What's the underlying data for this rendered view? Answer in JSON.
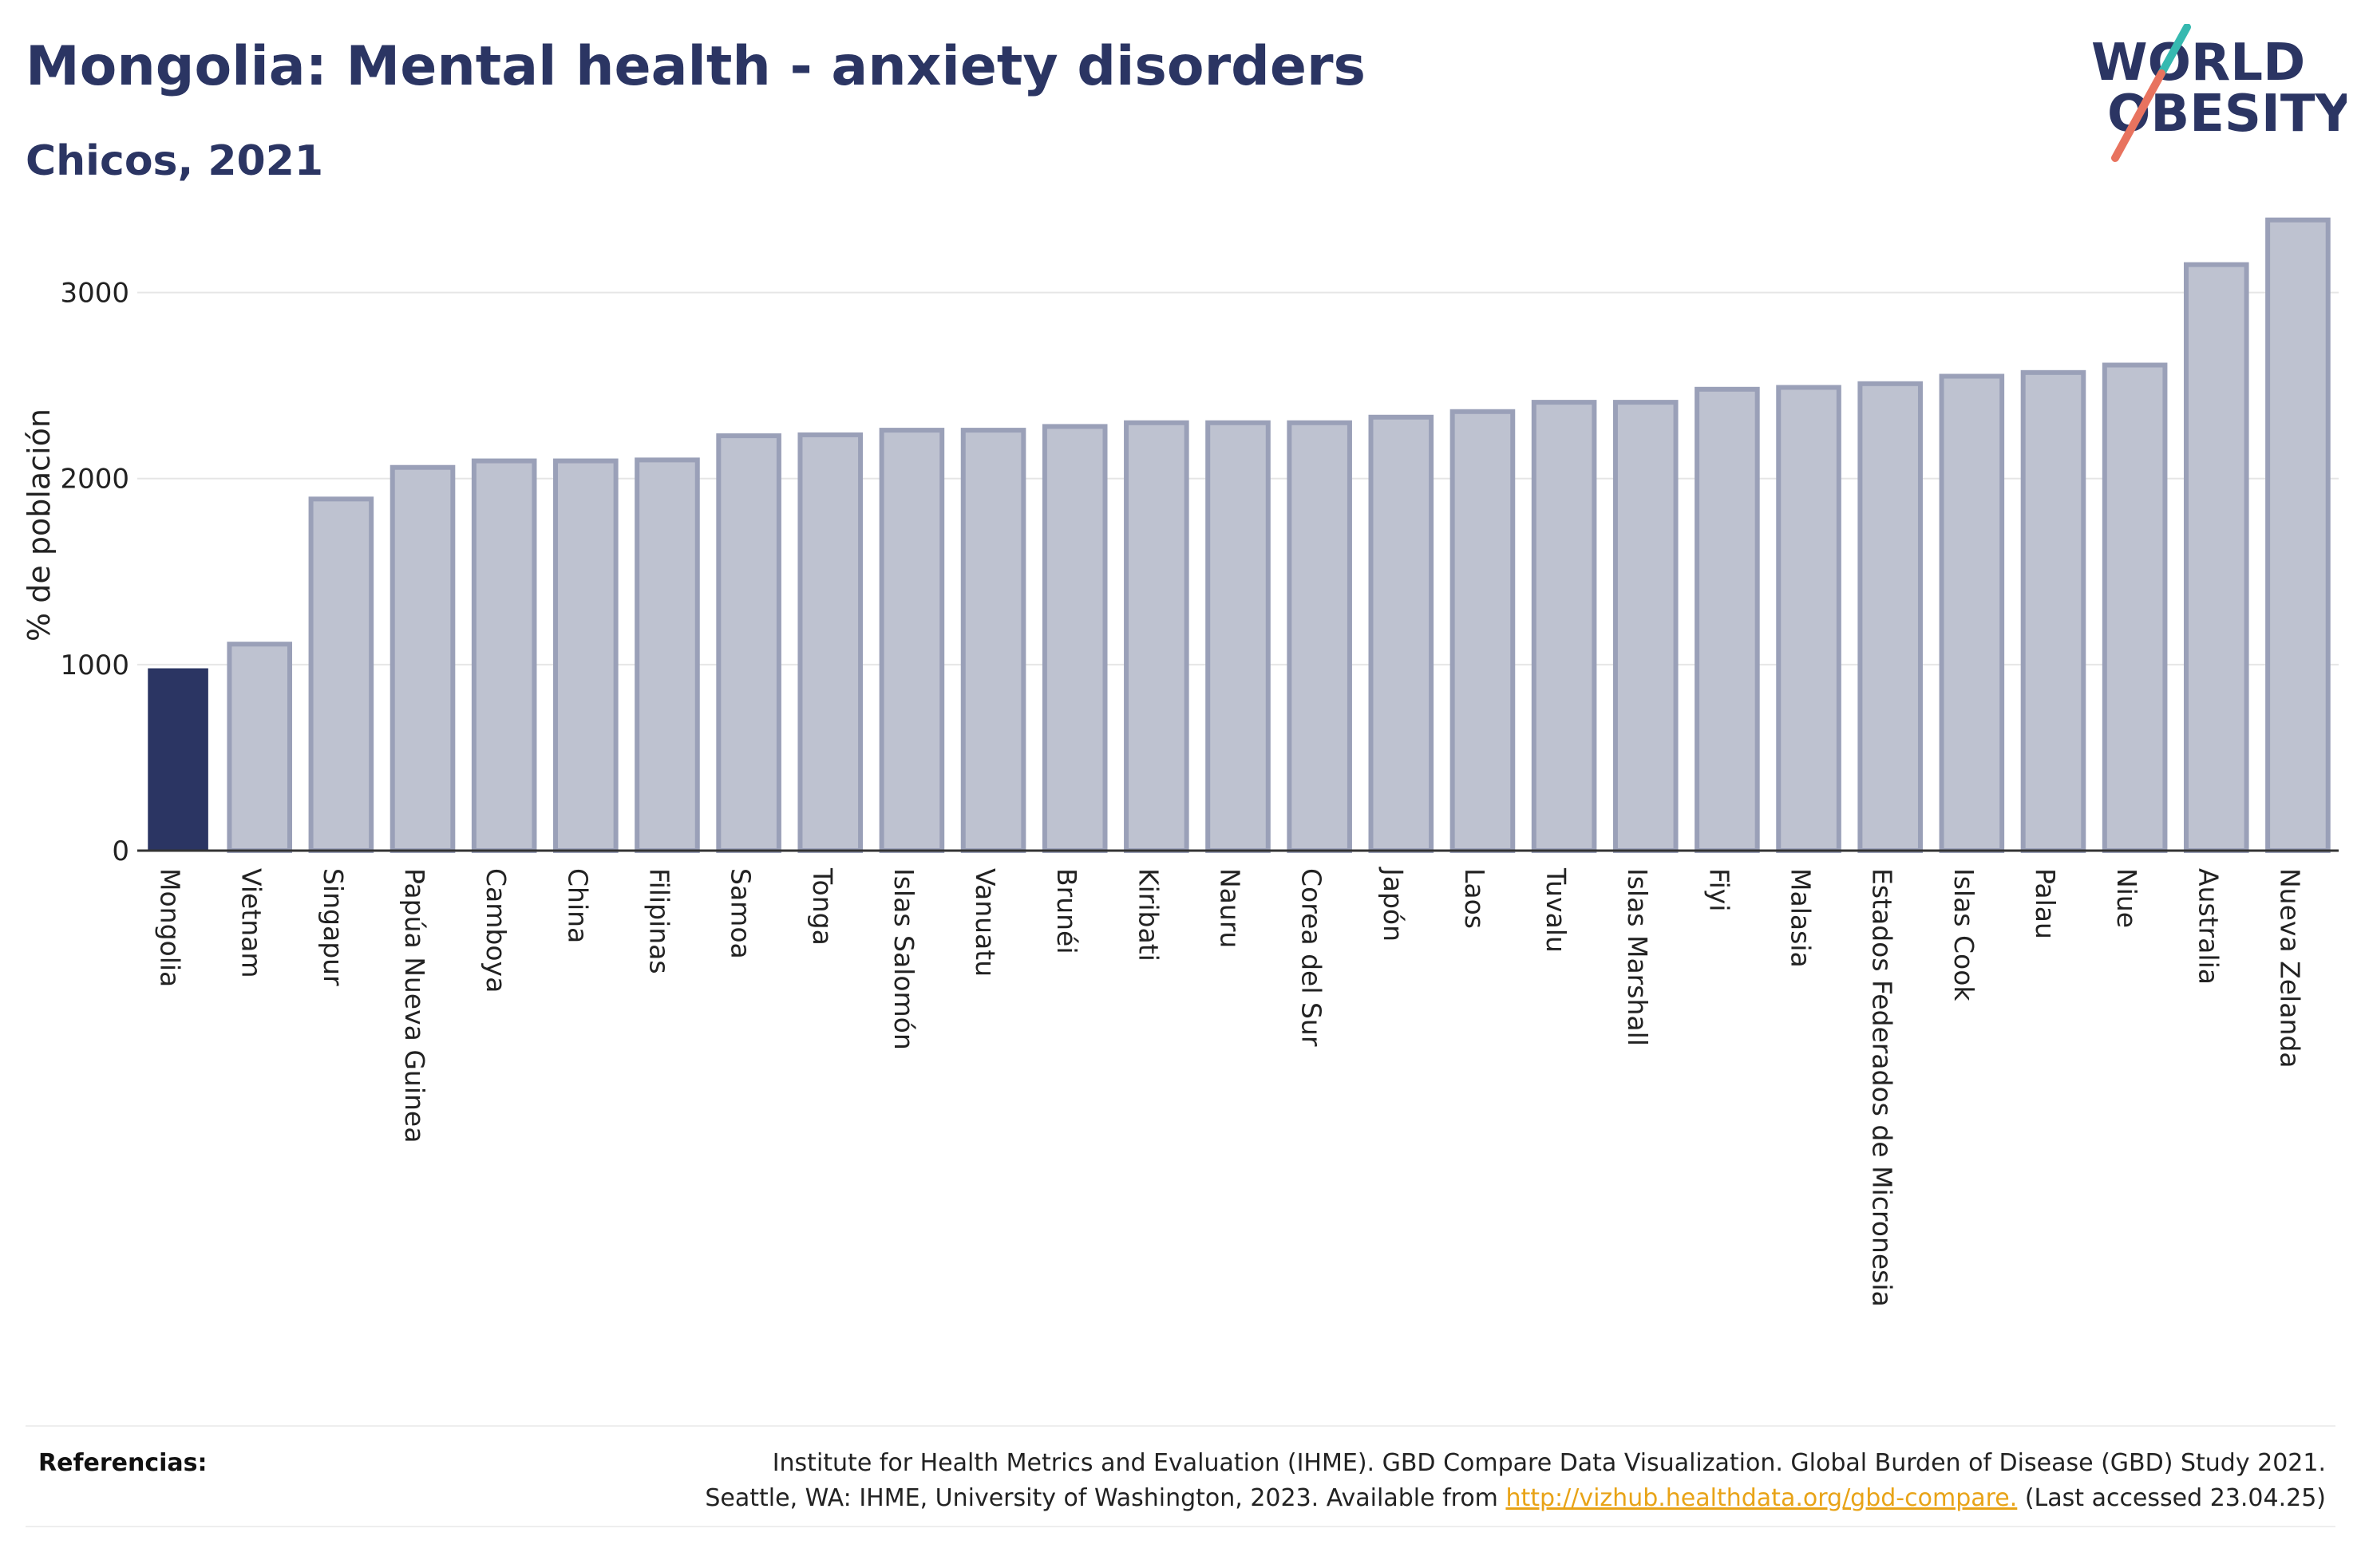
{
  "header": {
    "title": "Mongolia: Mental health - anxiety disorders",
    "subtitle": "Chicos, 2021"
  },
  "logo": {
    "line1": "WORLD",
    "line2": "OBESITY"
  },
  "colors": {
    "highlight": "#2b3563",
    "bar_fill": "#bec2d0",
    "bar_stroke": "#9aa0b8",
    "grid": "#e6e6e6",
    "logo_teal": "#36b9b0",
    "logo_coral": "#e8735f"
  },
  "chart_data": {
    "type": "bar",
    "ylabel": "% de población",
    "ylim": [
      0,
      3500
    ],
    "yticks": [
      0,
      1000,
      2000,
      3000
    ],
    "grid": true,
    "highlight": "Mongolia",
    "categories": [
      "Mongolia",
      "Vietnam",
      "Singapur",
      "Papúa Nueva Guinea",
      "Camboya",
      "China",
      "Filipinas",
      "Samoa",
      "Tonga",
      "Islas Salomón",
      "Vanuatu",
      "Brunéi",
      "Kiribati",
      "Nauru",
      "Corea del Sur",
      "Japón",
      "Laos",
      "Tuvalu",
      "Islas Marshall",
      "Fiyi",
      "Malasia",
      "Estados Federados de Micronesia",
      "Islas Cook",
      "Palau",
      "Niue",
      "Australia",
      "Nueva Zelanda"
    ],
    "values": [
      980,
      1110,
      1890,
      2060,
      2095,
      2095,
      2100,
      2230,
      2235,
      2260,
      2260,
      2280,
      2300,
      2300,
      2300,
      2330,
      2360,
      2410,
      2410,
      2480,
      2490,
      2510,
      2550,
      2570,
      2610,
      3150,
      3390
    ]
  },
  "footer": {
    "label": "Referencias:",
    "line1": "Institute for Health Metrics and Evaluation (IHME). GBD Compare Data Visualization. Global Burden of Disease (GBD) Study 2021.",
    "line2_prefix": "Seattle, WA: IHME, University of Washington, 2023. Available from ",
    "link": "http://vizhub.healthdata.org/gbd-compare.",
    "line2_suffix": " (Last accessed 23.04.25)"
  }
}
